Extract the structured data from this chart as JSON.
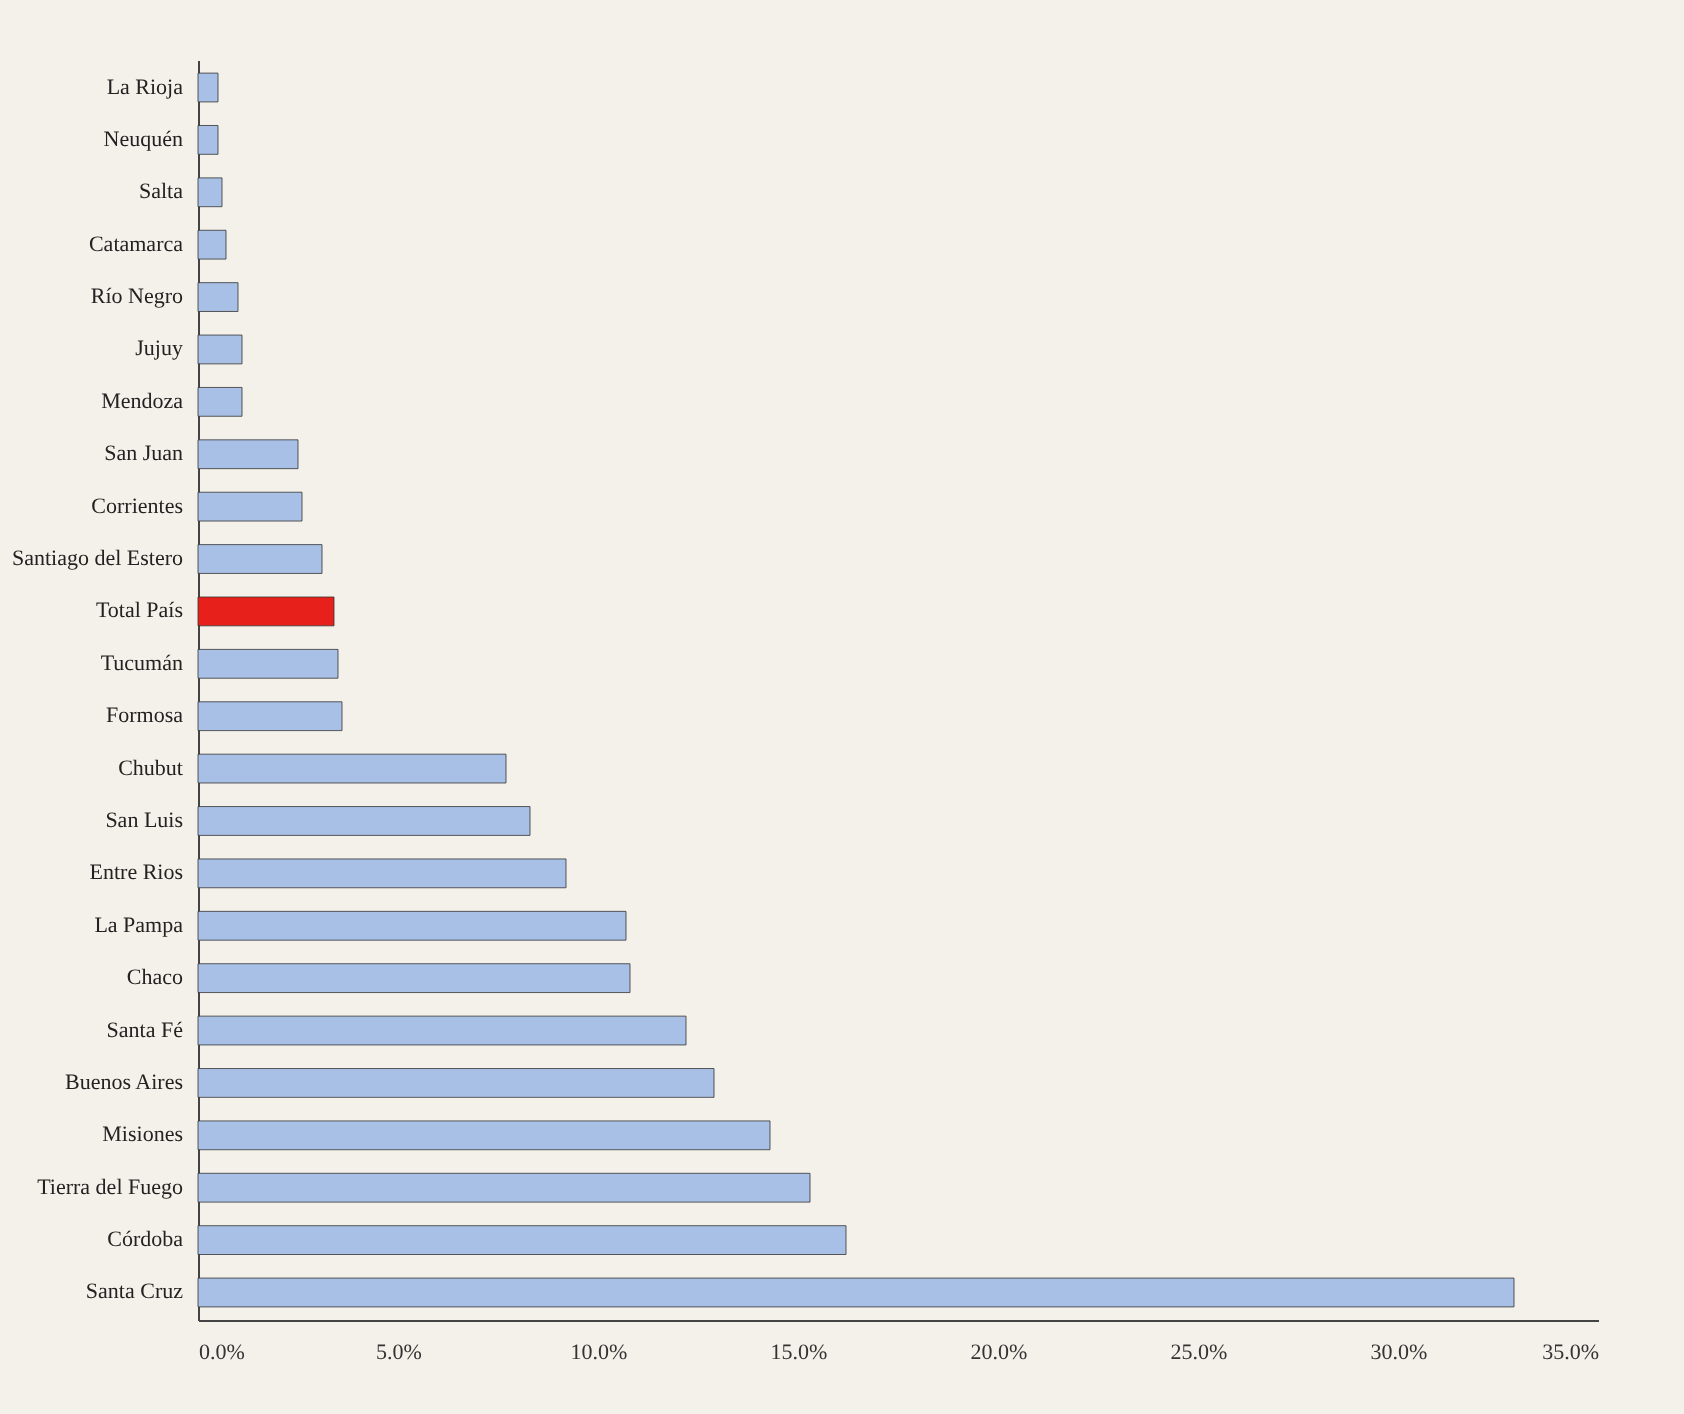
{
  "chart_data": {
    "type": "bar",
    "orientation": "horizontal",
    "categories": [
      "La Rioja",
      "Neuquén",
      "Salta",
      "Catamarca",
      "Río Negro",
      "Jujuy",
      "Mendoza",
      "San Juan",
      "Corrientes",
      "Santiago del Estero",
      "Total País",
      "Tucumán",
      "Formosa",
      "Chubut",
      "San Luis",
      "Entre Rios",
      "La Pampa",
      "Chaco",
      "Santa Fé",
      "Buenos Aires",
      "Misiones",
      "Tierra del Fuego",
      "Córdoba",
      "Santa Cruz"
    ],
    "values": [
      0.5,
      0.5,
      0.6,
      0.7,
      1.0,
      1.1,
      1.1,
      2.5,
      2.6,
      3.1,
      3.4,
      3.5,
      3.6,
      7.7,
      8.3,
      9.2,
      10.7,
      10.8,
      12.2,
      12.9,
      14.3,
      15.3,
      16.2,
      32.9
    ],
    "colors": [
      "#a9c0e6",
      "#a9c0e6",
      "#a9c0e6",
      "#a9c0e6",
      "#a9c0e6",
      "#a9c0e6",
      "#a9c0e6",
      "#a9c0e6",
      "#a9c0e6",
      "#a9c0e6",
      "#e8201c",
      "#a9c0e6",
      "#a9c0e6",
      "#a9c0e6",
      "#a9c0e6",
      "#a9c0e6",
      "#a9c0e6",
      "#a9c0e6",
      "#a9c0e6",
      "#a9c0e6",
      "#a9c0e6",
      "#a9c0e6",
      "#a9c0e6",
      "#a9c0e6"
    ],
    "xlim": [
      0,
      35
    ],
    "xticks": [
      {
        "value": 0,
        "label": "0.0%"
      },
      {
        "value": 5,
        "label": "5.0%"
      },
      {
        "value": 10,
        "label": "10.0%"
      },
      {
        "value": 15,
        "label": "15.0%"
      },
      {
        "value": 20,
        "label": "20.0%"
      },
      {
        "value": 25,
        "label": "25.0%"
      },
      {
        "value": 30,
        "label": "30.0%"
      },
      {
        "value": 35,
        "label": "35.0%"
      }
    ],
    "grid": false,
    "legend": false
  }
}
